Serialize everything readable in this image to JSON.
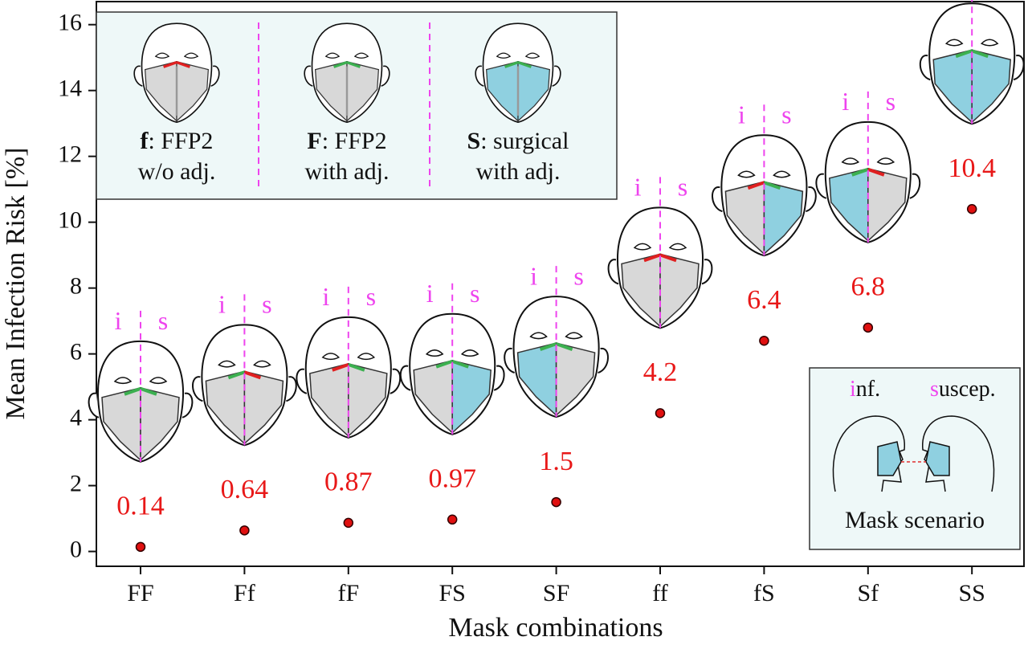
{
  "chart_data": {
    "type": "scatter",
    "y_label": "Mean Infection Risk [%]",
    "x_label": "Mask combinations",
    "categories": [
      "FF",
      "Ff",
      "fF",
      "FS",
      "SF",
      "ff",
      "fS",
      "Sf",
      "SS"
    ],
    "values": [
      0.14,
      0.64,
      0.87,
      0.97,
      1.5,
      4.2,
      6.4,
      6.8,
      10.4
    ],
    "color": "#e01010",
    "label_color": "#e81818",
    "ylim": [
      -0.45,
      16.7
    ],
    "yticks": [
      0,
      2,
      4,
      6,
      8,
      10,
      12,
      14,
      16
    ],
    "face_labels": [
      "i",
      "s"
    ],
    "mask_legend": [
      {
        "key": "f",
        "text": ": FFP2",
        "line2": "w/o adj."
      },
      {
        "key": "F",
        "text": ": FFP2",
        "line2": "with adj."
      },
      {
        "key": "S",
        "text": ": surgical",
        "line2": "with adj."
      }
    ],
    "inset": {
      "inf_initial": "i",
      "inf_rest": "nf.",
      "suscep_initial": "s",
      "suscep_rest": "uscep.",
      "title": "Mask scenario"
    }
  }
}
